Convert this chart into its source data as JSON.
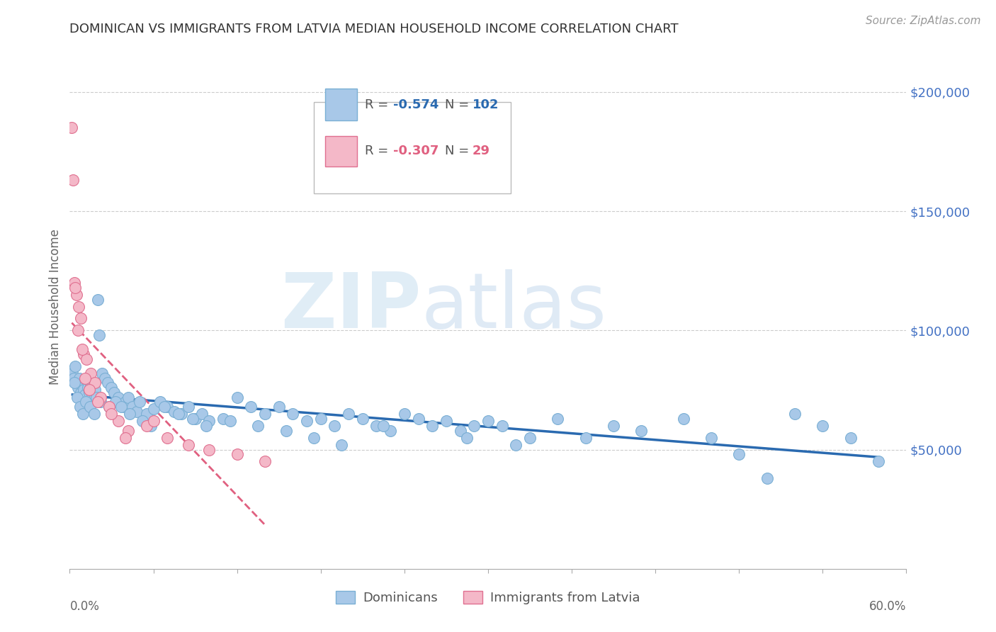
{
  "title": "DOMINICAN VS IMMIGRANTS FROM LATVIA MEDIAN HOUSEHOLD INCOME CORRELATION CHART",
  "source": "Source: ZipAtlas.com",
  "ylabel": "Median Household Income",
  "y_ticks": [
    50000,
    100000,
    150000,
    200000
  ],
  "y_tick_labels": [
    "$50,000",
    "$100,000",
    "$150,000",
    "$200,000"
  ],
  "xlim": [
    0.0,
    60.0
  ],
  "ylim": [
    0,
    220000
  ],
  "watermark_zip": "ZIP",
  "watermark_atlas": "atlas",
  "dominican_color": "#a8c8e8",
  "dominican_color_edge": "#7aafd4",
  "latvia_color": "#f4b8c8",
  "latvia_color_edge": "#e07090",
  "trend_dominican_color": "#2a6ab0",
  "trend_latvia_color": "#e06080",
  "dominican_x": [
    0.2,
    0.3,
    0.4,
    0.5,
    0.6,
    0.7,
    0.8,
    0.9,
    1.0,
    1.1,
    1.2,
    1.3,
    1.4,
    1.5,
    1.6,
    1.7,
    1.8,
    1.9,
    2.0,
    2.1,
    2.3,
    2.5,
    2.7,
    3.0,
    3.2,
    3.5,
    3.8,
    4.0,
    4.2,
    4.5,
    4.8,
    5.0,
    5.5,
    6.0,
    6.5,
    7.0,
    7.5,
    8.0,
    8.5,
    9.0,
    9.5,
    10.0,
    11.0,
    12.0,
    13.0,
    14.0,
    15.0,
    16.0,
    17.0,
    18.0,
    19.0,
    20.0,
    21.0,
    22.0,
    23.0,
    24.0,
    25.0,
    26.0,
    27.0,
    28.0,
    29.0,
    30.0,
    31.0,
    33.0,
    35.0,
    37.0,
    39.0,
    41.0,
    44.0,
    46.0,
    48.0,
    50.0,
    52.0,
    54.0,
    56.0,
    58.0,
    0.35,
    0.55,
    0.75,
    0.95,
    1.15,
    1.45,
    1.75,
    2.2,
    2.8,
    3.3,
    3.7,
    4.3,
    5.2,
    5.8,
    6.8,
    7.8,
    8.8,
    9.8,
    11.5,
    13.5,
    15.5,
    17.5,
    19.5,
    22.5,
    28.5,
    32.0
  ],
  "dominican_y": [
    82000,
    80000,
    85000,
    78000,
    76000,
    80000,
    74000,
    77000,
    75000,
    73000,
    79000,
    76000,
    74000,
    77000,
    73000,
    71000,
    75000,
    72000,
    113000,
    98000,
    82000,
    80000,
    78000,
    76000,
    74000,
    72000,
    68000,
    70000,
    72000,
    68000,
    66000,
    70000,
    65000,
    67000,
    70000,
    68000,
    66000,
    65000,
    68000,
    63000,
    65000,
    62000,
    63000,
    72000,
    68000,
    65000,
    68000,
    65000,
    62000,
    63000,
    60000,
    65000,
    63000,
    60000,
    58000,
    65000,
    63000,
    60000,
    62000,
    58000,
    60000,
    62000,
    60000,
    55000,
    63000,
    55000,
    60000,
    58000,
    63000,
    55000,
    48000,
    38000,
    65000,
    60000,
    55000,
    45000,
    78000,
    72000,
    68000,
    65000,
    70000,
    68000,
    65000,
    70000,
    68000,
    70000,
    68000,
    65000,
    62000,
    60000,
    68000,
    65000,
    63000,
    60000,
    62000,
    60000,
    58000,
    55000,
    52000,
    60000,
    55000,
    52000
  ],
  "latvia_x": [
    0.15,
    0.25,
    0.35,
    0.5,
    0.65,
    0.8,
    1.0,
    1.2,
    1.5,
    1.8,
    2.2,
    2.8,
    3.5,
    4.2,
    5.5,
    7.0,
    8.5,
    10.0,
    12.0,
    14.0,
    0.4,
    0.6,
    0.9,
    1.1,
    1.4,
    2.0,
    3.0,
    4.0,
    6.0
  ],
  "latvia_y": [
    185000,
    163000,
    120000,
    115000,
    110000,
    105000,
    90000,
    88000,
    82000,
    78000,
    72000,
    68000,
    62000,
    58000,
    60000,
    55000,
    52000,
    50000,
    48000,
    45000,
    118000,
    100000,
    92000,
    80000,
    75000,
    70000,
    65000,
    55000,
    62000
  ]
}
